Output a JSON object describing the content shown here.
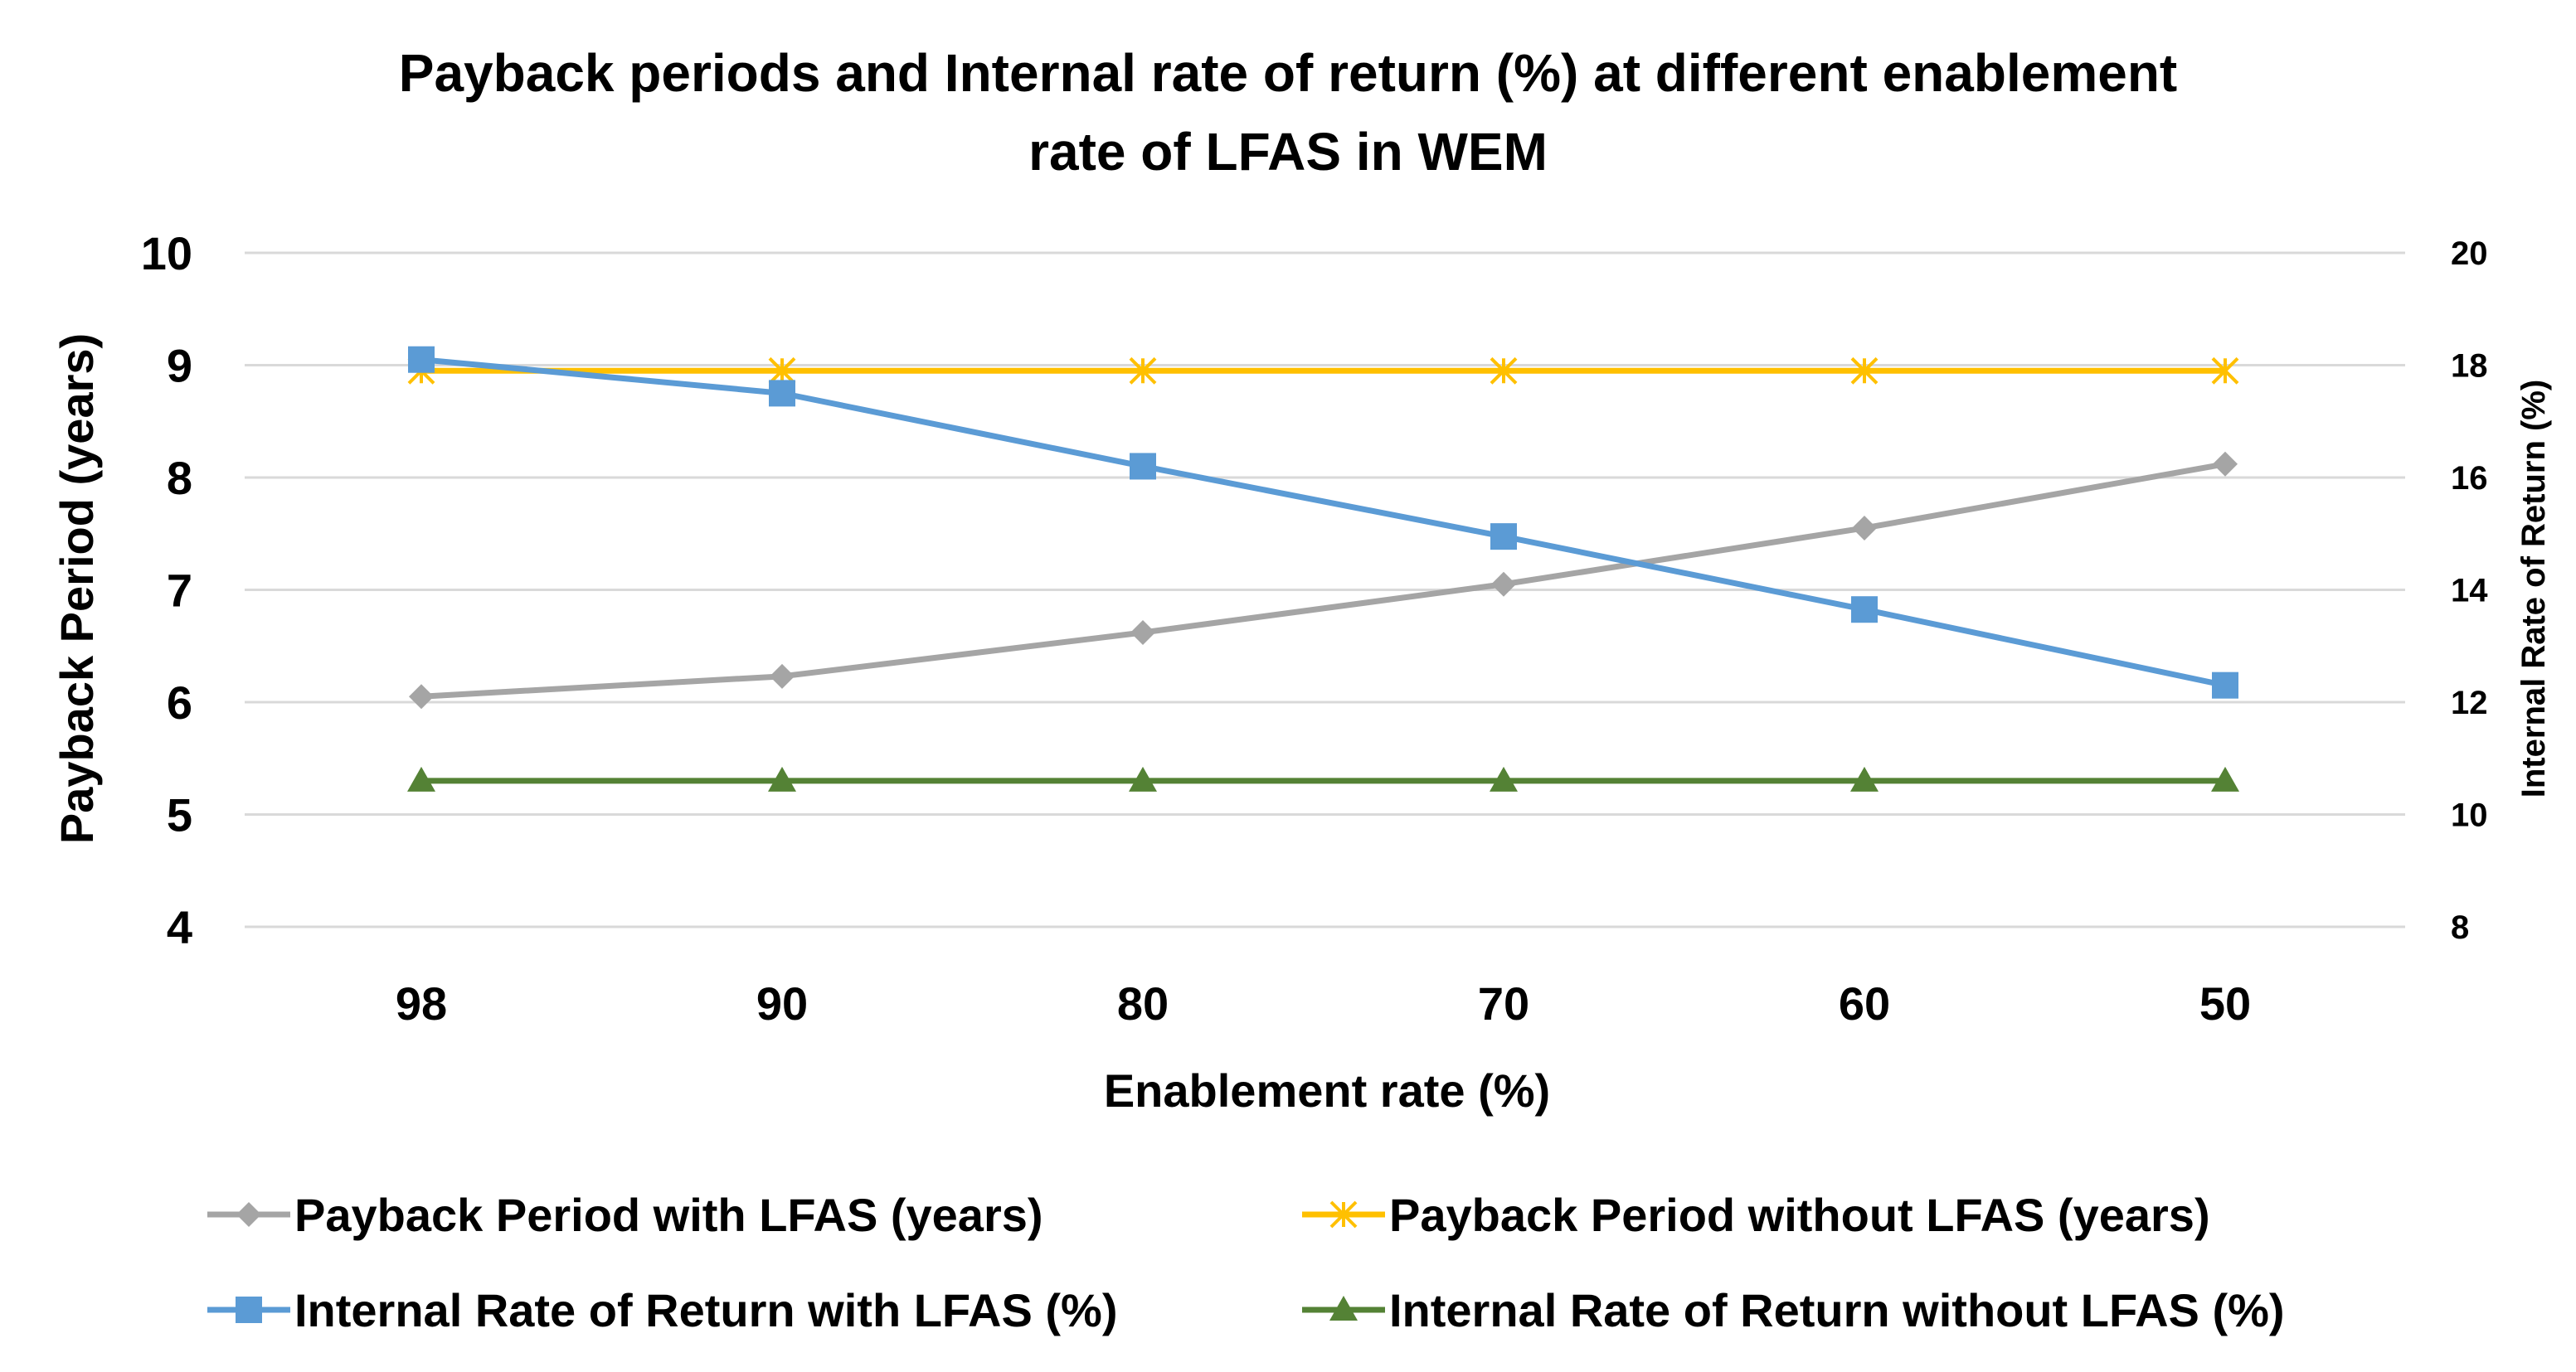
{
  "chart_data": {
    "type": "line",
    "title_lines": [
      "Payback periods and Internal rate of return (%) at different enablement",
      "rate of LFAS in WEM"
    ],
    "xlabel": "Enablement rate (%)",
    "ylabel": "Payback Period (years)",
    "y2label": "Internal Rate of Return (%)",
    "categories": [
      "98",
      "90",
      "80",
      "70",
      "60",
      "50"
    ],
    "ylim": [
      4,
      10
    ],
    "yticks": [
      "4",
      "5",
      "6",
      "7",
      "8",
      "9",
      "10"
    ],
    "y2lim": [
      8,
      20
    ],
    "y2ticks": [
      "8",
      "10",
      "12",
      "14",
      "16",
      "18",
      "20"
    ],
    "grid": true,
    "legend_position": "bottom",
    "series": [
      {
        "name": "Payback Period with LFAS (years)",
        "axis": "left",
        "marker": "diamond",
        "color": "#a5a5a5",
        "values": [
          6.05,
          6.23,
          6.62,
          7.05,
          7.55,
          8.12
        ]
      },
      {
        "name": "Payback Period without LFAS (years)",
        "axis": "left",
        "marker": "star",
        "color": "#ffc000",
        "values": [
          8.95,
          8.95,
          8.95,
          8.95,
          8.95,
          8.95
        ]
      },
      {
        "name": "Internal Rate of Return with LFAS (%)",
        "axis": "right",
        "marker": "square",
        "color": "#5b9bd5",
        "values": [
          18.1,
          17.5,
          16.2,
          14.95,
          13.65,
          12.3
        ]
      },
      {
        "name": "Internal Rate of Return without LFAS (%)",
        "axis": "right",
        "marker": "triangle",
        "color": "#548235",
        "values": [
          10.6,
          10.6,
          10.6,
          10.6,
          10.6,
          10.6
        ]
      }
    ]
  }
}
